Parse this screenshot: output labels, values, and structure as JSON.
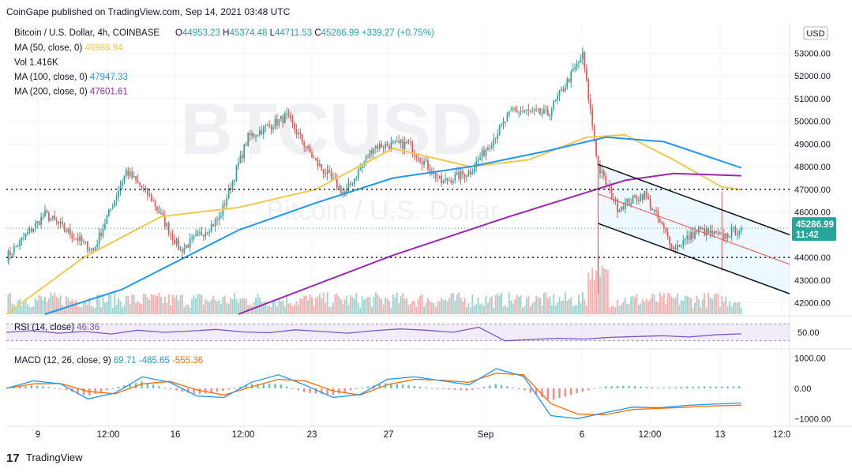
{
  "header": {
    "published": "CoinGape published on TradingView.com, Sep 14, 2021 03:48 UTC"
  },
  "legend": {
    "symbol": "Bitcoin / U.S. Dollar, 4h, COINBASE",
    "ohlc": [
      {
        "key": "O",
        "value": "44953.23"
      },
      {
        "key": "H",
        "value": "45374.48"
      },
      {
        "key": "L",
        "value": "44711.53"
      },
      {
        "key": "C",
        "value": "45286.99"
      }
    ],
    "change": "+339.27 (+0.75%)",
    "indicators": [
      {
        "label": "MA (50, close, 0)",
        "value": "46986.94",
        "color": "#f2c94c"
      },
      {
        "label": "Vol",
        "value": "1.416K",
        "color": "#131722"
      },
      {
        "label": "MA (100, close, 0)",
        "value": "47947.33",
        "color": "#2196f3"
      },
      {
        "label": "MA (200, close, 0)",
        "value": "47601.61",
        "color": "#9c27b0"
      }
    ]
  },
  "watermark": {
    "big": "BTCUSD",
    "small": "Bitcoin / U.S. Dollar"
  },
  "currency": "USD",
  "price_tag": {
    "price": "45286.99",
    "countdown": "11:42"
  },
  "rsi": {
    "label": "RSI (14, close)",
    "value": "46.36",
    "axis_label": "50.00"
  },
  "macd": {
    "label": "MACD (12, 26, close, 9)",
    "values": [
      "69.71",
      "-485.65",
      "-555.36"
    ],
    "colors": [
      "#26a69a",
      "#2196f3",
      "#ff6d00"
    ],
    "axis_labels": [
      "1000.00",
      "0.00",
      "−1000.00"
    ]
  },
  "time_labels": [
    "9",
    "12:00",
    "16",
    "12:00",
    "23",
    "27",
    "Sep",
    "6",
    "12:00",
    "13",
    "12:0"
  ],
  "footer": {
    "brand": "TradingView"
  },
  "colors": {
    "up": "#26a69a",
    "down": "#ef5350",
    "ma50": "#f2c94c",
    "ma100": "#2196f3",
    "ma200": "#9c27b0",
    "channel": "#131722",
    "channel_mid": "#ef5350",
    "rsi": "#7e57c2"
  },
  "chart_data": [
    {
      "type": "candlestick",
      "title": "Bitcoin / U.S. Dollar, 4h, COINBASE",
      "ylim": [
        41500,
        53500
      ],
      "yticks": [
        "53000.00",
        "52000.00",
        "51000.00",
        "50000.00",
        "49000.00",
        "48000.00",
        "47000.00",
        "46000.00",
        "45000.00",
        "44000.00",
        "43000.00",
        "42000.00"
      ],
      "price_keypoints": [
        {
          "t": 0,
          "p": 44000
        },
        {
          "t": 20,
          "p": 45900
        },
        {
          "t": 45,
          "p": 44300
        },
        {
          "t": 62,
          "p": 47800
        },
        {
          "t": 75,
          "p": 46600
        },
        {
          "t": 90,
          "p": 44300
        },
        {
          "t": 110,
          "p": 45700
        },
        {
          "t": 125,
          "p": 49300
        },
        {
          "t": 145,
          "p": 50200
        },
        {
          "t": 160,
          "p": 48200
        },
        {
          "t": 175,
          "p": 46800
        },
        {
          "t": 190,
          "p": 48900
        },
        {
          "t": 208,
          "p": 49000
        },
        {
          "t": 225,
          "p": 47300
        },
        {
          "t": 240,
          "p": 47800
        },
        {
          "t": 262,
          "p": 50500
        },
        {
          "t": 280,
          "p": 50300
        },
        {
          "t": 298,
          "p": 52900
        },
        {
          "t": 306,
          "p": 48000
        },
        {
          "t": 316,
          "p": 46200
        },
        {
          "t": 330,
          "p": 46800
        },
        {
          "t": 345,
          "p": 44400
        },
        {
          "t": 358,
          "p": 45200
        },
        {
          "t": 370,
          "p": 44900
        },
        {
          "t": 380,
          "p": 45287
        }
      ],
      "ma50_points": [
        [
          0,
          41000
        ],
        [
          40,
          44000
        ],
        [
          80,
          45800
        ],
        [
          120,
          46200
        ],
        [
          160,
          47000
        ],
        [
          200,
          48800
        ],
        [
          240,
          48000
        ],
        [
          270,
          48300
        ],
        [
          300,
          49300
        ],
        [
          320,
          49400
        ],
        [
          345,
          48300
        ],
        [
          370,
          47100
        ],
        [
          380,
          46987
        ]
      ],
      "ma100_points": [
        [
          20,
          41000
        ],
        [
          60,
          42600
        ],
        [
          120,
          45200
        ],
        [
          160,
          46400
        ],
        [
          200,
          47500
        ],
        [
          240,
          48000
        ],
        [
          280,
          48700
        ],
        [
          310,
          49300
        ],
        [
          340,
          49100
        ],
        [
          380,
          47947
        ]
      ],
      "ma200_points": [
        [
          120,
          41000
        ],
        [
          200,
          44100
        ],
        [
          260,
          45800
        ],
        [
          290,
          46600
        ],
        [
          320,
          47400
        ],
        [
          345,
          47700
        ],
        [
          380,
          47602
        ]
      ],
      "horizontal_levels": [
        47000,
        44000
      ],
      "channel": {
        "upper": [
          [
            306,
            48100
          ],
          [
            405,
            45000
          ]
        ],
        "lower": [
          [
            306,
            45500
          ],
          [
            405,
            42400
          ]
        ],
        "middle": [
          [
            306,
            46800
          ],
          [
            405,
            43700
          ]
        ]
      }
    },
    {
      "type": "line",
      "title": "RSI (14, close)",
      "ylim": [
        0,
        100
      ],
      "values": [
        50,
        54,
        48,
        52,
        46,
        55,
        50,
        53,
        57,
        51,
        49,
        56,
        52,
        48,
        54,
        58,
        55,
        50,
        62,
        30,
        33,
        36,
        34,
        38,
        40,
        42,
        39,
        44,
        46.36
      ]
    },
    {
      "type": "histogram",
      "title": "MACD (12, 26, close, 9)",
      "ylim": [
        -1200,
        1200
      ],
      "macd_line": [
        0,
        250,
        150,
        -350,
        -150,
        380,
        200,
        -250,
        -300,
        200,
        450,
        100,
        -300,
        -200,
        300,
        380,
        250,
        120,
        650,
        400,
        -900,
        -1000,
        -800,
        -620,
        -640,
        -560,
        -520,
        -485.65
      ],
      "signal_line": [
        0,
        150,
        160,
        -100,
        -180,
        150,
        230,
        -50,
        -220,
        50,
        300,
        240,
        -80,
        -220,
        120,
        300,
        270,
        200,
        500,
        450,
        -500,
        -850,
        -870,
        -700,
        -660,
        -620,
        -580,
        -555.36
      ]
    }
  ]
}
